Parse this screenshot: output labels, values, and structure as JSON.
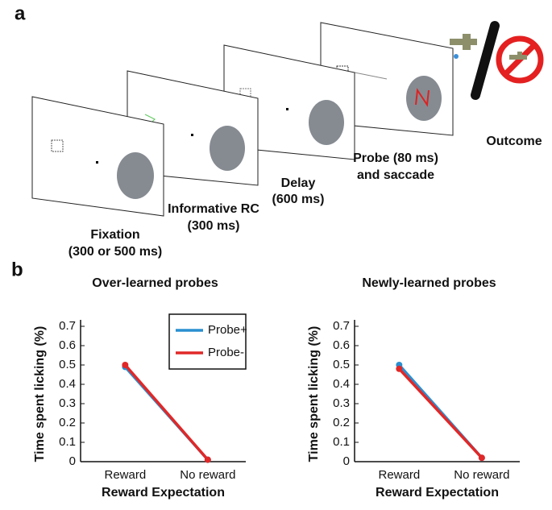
{
  "panel_labels": [
    "a",
    "b"
  ],
  "diagram": {
    "steps": [
      {
        "lines": [
          "Fixation",
          "(300 or 500 ms)"
        ]
      },
      {
        "lines": [
          "Informative RC",
          "(300 ms)"
        ]
      },
      {
        "lines": [
          "Delay",
          "(600 ms)"
        ]
      },
      {
        "lines": [
          "Probe (80 ms)",
          "and saccade"
        ]
      },
      {
        "lines": [
          "Outcome"
        ]
      }
    ]
  },
  "chart_data": [
    {
      "type": "line",
      "title": "Over-learned probes",
      "xlabel": "Reward Expectation",
      "ylabel": "Time spent licking (%)",
      "categories": [
        "Reward",
        "No reward"
      ],
      "ylim": [
        0,
        0.7
      ],
      "yticks": [
        0,
        0.1,
        0.2,
        0.3,
        0.4,
        0.5,
        0.6,
        0.7
      ],
      "legend": true,
      "legend_loc": "upper right",
      "series": [
        {
          "name": "Probe+",
          "color": "#2a8fd0",
          "values": [
            0.49,
            0.01
          ]
        },
        {
          "name": "Probe-",
          "color": "#e02828",
          "values": [
            0.5,
            0.01
          ]
        }
      ]
    },
    {
      "type": "line",
      "title": "Newly-learned probes",
      "xlabel": "Reward Expectation",
      "ylabel": "Time spent licking (%)",
      "categories": [
        "Reward",
        "No reward"
      ],
      "ylim": [
        0,
        0.7
      ],
      "yticks": [
        0,
        0.1,
        0.2,
        0.3,
        0.4,
        0.5,
        0.6,
        0.7
      ],
      "legend": false,
      "series": [
        {
          "color": "#2a8fd0",
          "values": [
            0.5,
            0.02
          ]
        },
        {
          "color": "#e02828",
          "values": [
            0.48,
            0.02
          ]
        }
      ]
    }
  ]
}
